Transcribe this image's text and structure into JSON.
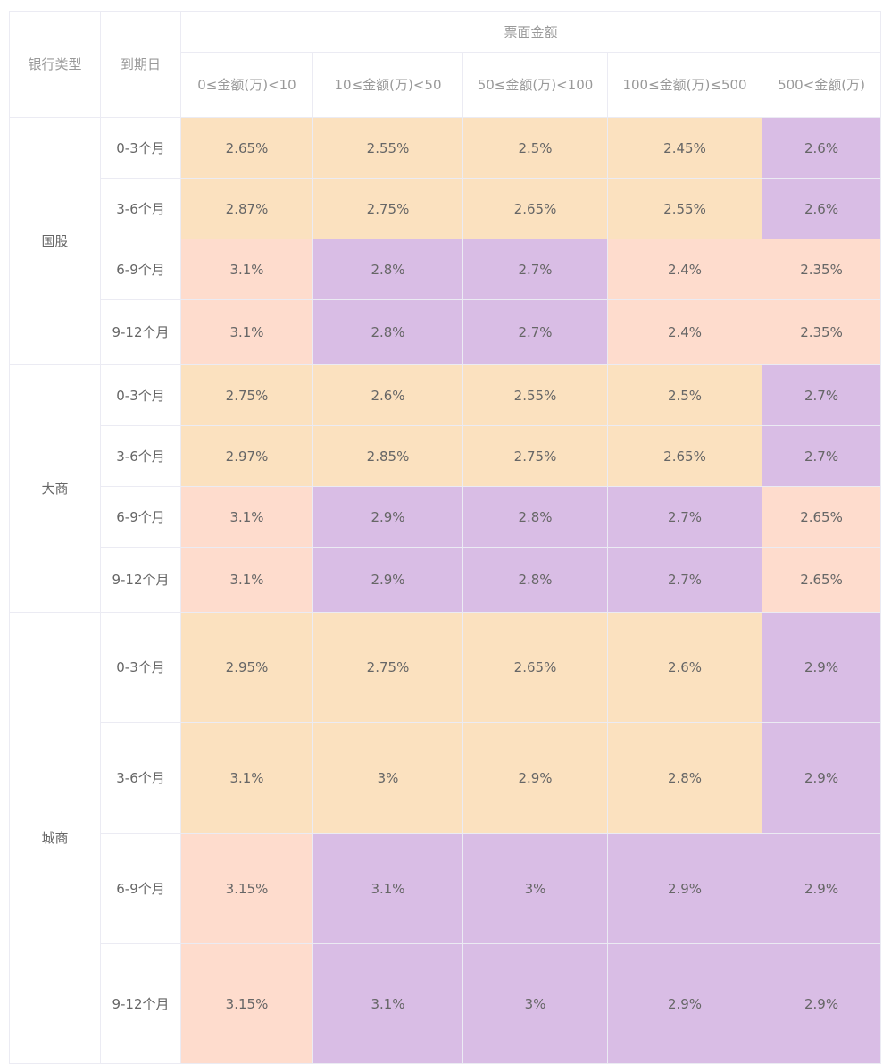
{
  "header": {
    "bank_type": "银行类型",
    "maturity": "到期日",
    "face_amount": "票面金额",
    "amount_columns": [
      "0≤金额(万)<10",
      "10≤金额(万)<50",
      "50≤金额(万)<100",
      "100≤金额(万)≤500",
      "500<金额(万)"
    ]
  },
  "colors": {
    "o": "#fbe1bf",
    "p": "#d9bde5",
    "k": "#fedccd"
  },
  "groups": [
    {
      "bank": "国股",
      "rows": [
        {
          "maturity": "0-3个月",
          "values": [
            "2.65%",
            "2.55%",
            "2.5%",
            "2.45%",
            "2.6%"
          ],
          "colors": [
            "o",
            "o",
            "o",
            "o",
            "p"
          ]
        },
        {
          "maturity": "3-6个月",
          "values": [
            "2.87%",
            "2.75%",
            "2.65%",
            "2.55%",
            "2.6%"
          ],
          "colors": [
            "o",
            "o",
            "o",
            "o",
            "p"
          ]
        },
        {
          "maturity": "6-9个月",
          "values": [
            "3.1%",
            "2.8%",
            "2.7%",
            "2.4%",
            "2.35%"
          ],
          "colors": [
            "k",
            "p",
            "p",
            "k",
            "k"
          ]
        },
        {
          "maturity": "9-12个月",
          "values": [
            "3.1%",
            "2.8%",
            "2.7%",
            "2.4%",
            "2.35%"
          ],
          "colors": [
            "k",
            "p",
            "p",
            "k",
            "k"
          ]
        }
      ]
    },
    {
      "bank": "大商",
      "rows": [
        {
          "maturity": "0-3个月",
          "values": [
            "2.75%",
            "2.6%",
            "2.55%",
            "2.5%",
            "2.7%"
          ],
          "colors": [
            "o",
            "o",
            "o",
            "o",
            "p"
          ]
        },
        {
          "maturity": "3-6个月",
          "values": [
            "2.97%",
            "2.85%",
            "2.75%",
            "2.65%",
            "2.7%"
          ],
          "colors": [
            "o",
            "o",
            "o",
            "o",
            "p"
          ]
        },
        {
          "maturity": "6-9个月",
          "values": [
            "3.1%",
            "2.9%",
            "2.8%",
            "2.7%",
            "2.65%"
          ],
          "colors": [
            "k",
            "p",
            "p",
            "p",
            "k"
          ]
        },
        {
          "maturity": "9-12个月",
          "values": [
            "3.1%",
            "2.9%",
            "2.8%",
            "2.7%",
            "2.65%"
          ],
          "colors": [
            "k",
            "p",
            "p",
            "p",
            "k"
          ]
        }
      ]
    },
    {
      "bank": "城商",
      "rows": [
        {
          "maturity": "0-3个月",
          "values": [
            "2.95%",
            "2.75%",
            "2.65%",
            "2.6%",
            "2.9%"
          ],
          "colors": [
            "o",
            "o",
            "o",
            "o",
            "p"
          ]
        },
        {
          "maturity": "3-6个月",
          "values": [
            "3.1%",
            "3%",
            "2.9%",
            "2.8%",
            "2.9%"
          ],
          "colors": [
            "o",
            "o",
            "o",
            "o",
            "p"
          ]
        },
        {
          "maturity": "6-9个月",
          "values": [
            "3.15%",
            "3.1%",
            "3%",
            "2.9%",
            "2.9%"
          ],
          "colors": [
            "k",
            "p",
            "p",
            "p",
            "p"
          ]
        },
        {
          "maturity": "9-12个月",
          "values": [
            "3.15%",
            "3.1%",
            "3%",
            "2.9%",
            "2.9%"
          ],
          "colors": [
            "k",
            "p",
            "p",
            "p",
            "p"
          ]
        }
      ]
    }
  ]
}
